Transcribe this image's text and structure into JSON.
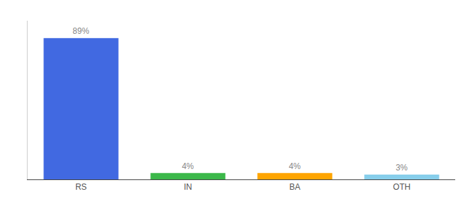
{
  "chart_data": {
    "type": "bar",
    "categories": [
      "RS",
      "IN",
      "BA",
      "OTH"
    ],
    "values": [
      89,
      4,
      4,
      3
    ],
    "value_labels": [
      "89%",
      "4%",
      "4%",
      "3%"
    ],
    "data_labels": true,
    "colors": [
      "#4169e1",
      "#3cb84a",
      "#ffa500",
      "#87ceeb"
    ],
    "ylim": [
      0,
      100
    ],
    "tick_labels": "x",
    "grid": false
  }
}
